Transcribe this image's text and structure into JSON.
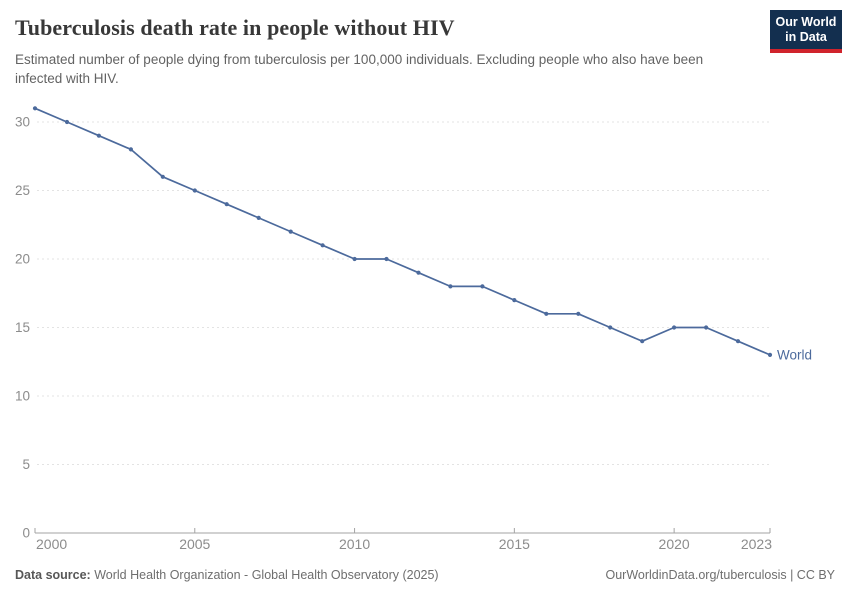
{
  "header": {
    "title": "Tuberculosis death rate in people without HIV",
    "subtitle": "Estimated number of people dying from tuberculosis per 100,000 individuals. Excluding people who also have been infected with HIV.",
    "logo": {
      "line1": "Our World",
      "line2": "in Data"
    }
  },
  "chart_data": {
    "type": "line",
    "title": "Tuberculosis death rate in people without HIV",
    "xlabel": "",
    "ylabel": "",
    "xlim": [
      2000,
      2023
    ],
    "ylim": [
      0,
      32
    ],
    "x_ticks": [
      2000,
      2005,
      2010,
      2015,
      2020,
      2023
    ],
    "y_ticks": [
      0,
      5,
      10,
      15,
      20,
      25,
      30
    ],
    "grid": "horizontal-dashed",
    "legend_position": "end-of-line-label",
    "series": [
      {
        "name": "World",
        "color": "#4c6a9c",
        "x": [
          2000,
          2001,
          2002,
          2003,
          2004,
          2005,
          2006,
          2007,
          2008,
          2009,
          2010,
          2011,
          2012,
          2013,
          2014,
          2015,
          2016,
          2017,
          2018,
          2019,
          2020,
          2021,
          2022,
          2023
        ],
        "values": [
          31,
          30,
          29,
          28,
          26,
          25,
          24,
          23,
          22,
          21,
          20,
          20,
          19,
          18,
          18,
          17,
          16,
          16,
          15,
          14,
          15,
          15,
          14,
          13
        ]
      }
    ]
  },
  "footer": {
    "source_label": "Data source:",
    "source_text": "World Health Organization - Global Health Observatory (2025)",
    "credit": "OurWorldinData.org/tuberculosis | CC BY"
  },
  "colors": {
    "accent_line": "#4c6a9c",
    "logo_navy": "#132f4f",
    "logo_red": "#d0232c",
    "gridline": "#e3e3e3",
    "axis_line": "#a3a3a3",
    "axis_label": "#8c8c8c"
  }
}
